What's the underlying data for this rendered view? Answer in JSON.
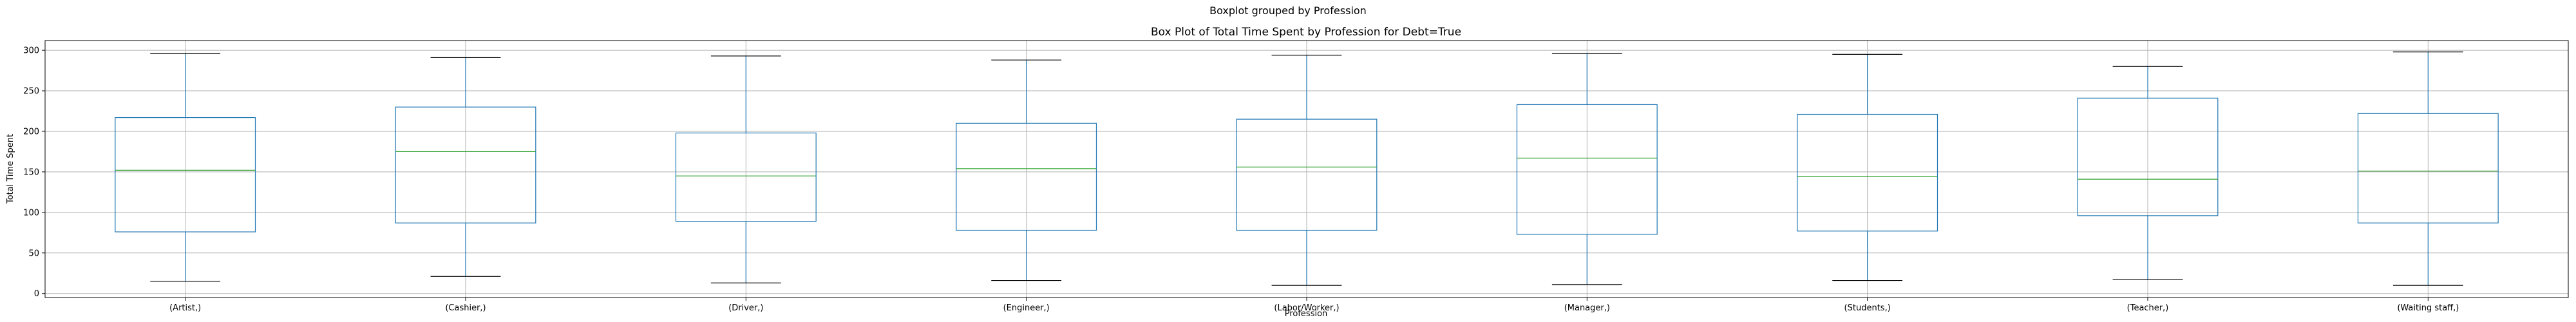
{
  "figure": {
    "suptitle": "Boxplot grouped by Profession"
  },
  "chart_data": {
    "type": "box",
    "title": "Box Plot of Total Time Spent by Profession for Debt=True",
    "xlabel": "Profession",
    "ylabel": "Total Time Spent",
    "ylim": [
      -5,
      312
    ],
    "yticks": [
      0,
      50,
      100,
      150,
      200,
      250,
      300
    ],
    "grid": true,
    "categories": [
      "(Artist,)",
      "(Cashier,)",
      "(Driver,)",
      "(Engineer,)",
      "(Labor/Worker,)",
      "(Manager,)",
      "(Students,)",
      "(Teacher,)",
      "(Waiting staff,)"
    ],
    "boxes": [
      {
        "whisker_low": 15,
        "q1": 76,
        "median": 152,
        "q3": 217,
        "whisker_high": 296
      },
      {
        "whisker_low": 21,
        "q1": 87,
        "median": 175,
        "q3": 230,
        "whisker_high": 291
      },
      {
        "whisker_low": 13,
        "q1": 89,
        "median": 145,
        "q3": 198,
        "whisker_high": 293
      },
      {
        "whisker_low": 16,
        "q1": 78,
        "median": 154,
        "q3": 210,
        "whisker_high": 288
      },
      {
        "whisker_low": 10,
        "q1": 78,
        "median": 156,
        "q3": 215,
        "whisker_high": 294
      },
      {
        "whisker_low": 11,
        "q1": 73,
        "median": 167,
        "q3": 233,
        "whisker_high": 296
      },
      {
        "whisker_low": 16,
        "q1": 77,
        "median": 144,
        "q3": 221,
        "whisker_high": 295
      },
      {
        "whisker_low": 17,
        "q1": 96,
        "median": 141,
        "q3": 241,
        "whisker_high": 280
      },
      {
        "whisker_low": 10,
        "q1": 87,
        "median": 151,
        "q3": 222,
        "whisker_high": 298
      }
    ],
    "colors": {
      "box": "#1f77b4",
      "median": "#2ca02c",
      "cap": "#000000",
      "grid": "#b0b0b0",
      "axis": "#000000"
    }
  }
}
